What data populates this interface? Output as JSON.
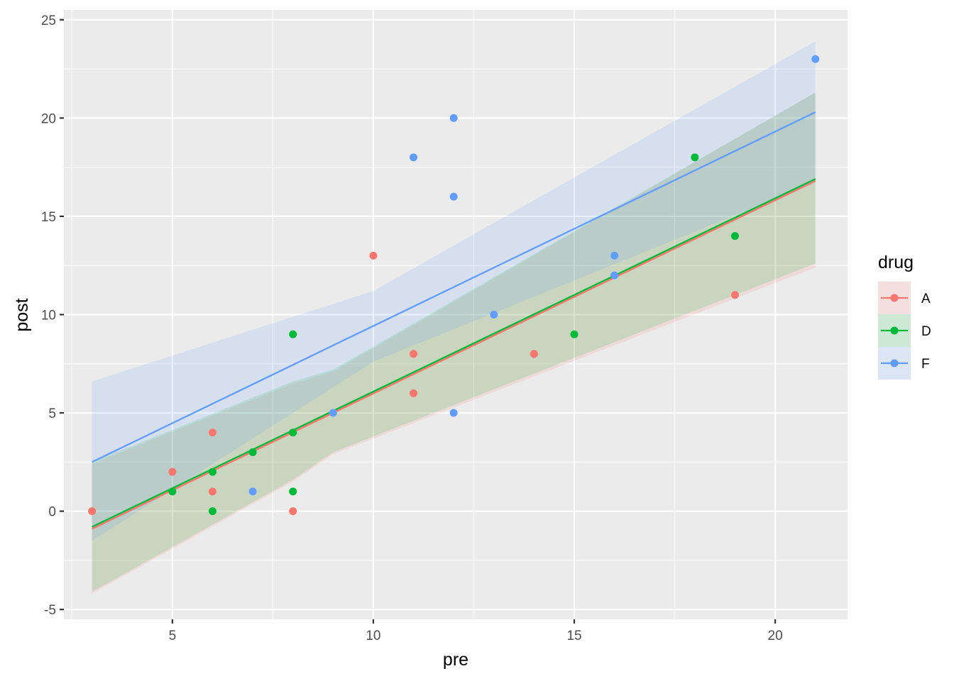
{
  "chart_data": {
    "type": "scatter",
    "xlabel": "pre",
    "ylabel": "post",
    "xlim": [
      2.3,
      21.8
    ],
    "ylim": [
      -5.5,
      25.5
    ],
    "x_ticks": [
      5,
      10,
      15,
      20
    ],
    "y_ticks": [
      -5,
      0,
      5,
      10,
      15,
      20,
      25
    ],
    "x_tick_labels": [
      "5",
      "10",
      "15",
      "20"
    ],
    "y_tick_labels": [
      "-5",
      "0",
      "5",
      "10",
      "15",
      "20",
      "25"
    ],
    "x_minor_ticks": [
      2.5,
      7.5,
      12.5,
      17.5
    ],
    "y_minor_ticks": [
      -2.5,
      2.5,
      7.5,
      12.5,
      17.5,
      22.5
    ],
    "grid": true,
    "legend": {
      "title": "drug",
      "position": "right",
      "entries": [
        "A",
        "D",
        "F"
      ]
    },
    "series": [
      {
        "name": "A",
        "color": "#F8766D",
        "points": [
          [
            3,
            0
          ],
          [
            5,
            2
          ],
          [
            6,
            4
          ],
          [
            6,
            1
          ],
          [
            8,
            0
          ],
          [
            10,
            13
          ],
          [
            11,
            8
          ],
          [
            11,
            6
          ],
          [
            14,
            8
          ],
          [
            19,
            11
          ]
        ],
        "fit": {
          "x": [
            3,
            21
          ],
          "y": [
            -0.9,
            16.8
          ]
        },
        "band": {
          "x": [
            3,
            8,
            9,
            21
          ],
          "lower": [
            -4.2,
            1.5,
            2.9,
            12.4
          ],
          "upper": [
            2.4,
            6.5,
            7.1,
            21.3
          ]
        }
      },
      {
        "name": "D",
        "color": "#00BA38",
        "points": [
          [
            5,
            1
          ],
          [
            6,
            2
          ],
          [
            6,
            0
          ],
          [
            7,
            3
          ],
          [
            8,
            4
          ],
          [
            8,
            9
          ],
          [
            8,
            1
          ],
          [
            15,
            9
          ],
          [
            18,
            18
          ],
          [
            19,
            14
          ]
        ],
        "fit": {
          "x": [
            3,
            21
          ],
          "y": [
            -0.8,
            16.9
          ]
        },
        "band": {
          "x": [
            3,
            8,
            9,
            21
          ],
          "lower": [
            -4.1,
            1.6,
            3.0,
            12.6
          ],
          "upper": [
            2.5,
            6.6,
            7.2,
            21.3
          ]
        }
      },
      {
        "name": "F",
        "color": "#619CFF",
        "points": [
          [
            7,
            1
          ],
          [
            9,
            5
          ],
          [
            11,
            18
          ],
          [
            12,
            20
          ],
          [
            12,
            16
          ],
          [
            12,
            5
          ],
          [
            13,
            10
          ],
          [
            16,
            13
          ],
          [
            16,
            12
          ],
          [
            21,
            23
          ]
        ],
        "fit": {
          "x": [
            3,
            21
          ],
          "y": [
            2.5,
            20.3
          ]
        },
        "band": {
          "x": [
            3,
            10,
            21
          ],
          "lower": [
            -1.5,
            7.6,
            16.7
          ],
          "upper": [
            6.6,
            11.2,
            23.9
          ]
        }
      }
    ]
  }
}
